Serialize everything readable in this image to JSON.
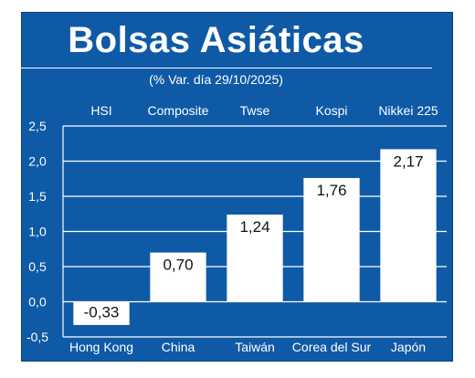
{
  "chart_data": {
    "type": "bar",
    "title": "Bolsas Asiáticas",
    "subtitle": "(% Var. día  29/10/2025)",
    "indices": [
      "HSI",
      "Composite",
      "Twse",
      "Kospi",
      "Nikkei 225"
    ],
    "categories": [
      "Hong Kong",
      "China",
      "Taiwán",
      "Corea del Sur",
      "Japón"
    ],
    "values": [
      -0.33,
      0.7,
      1.24,
      1.76,
      2.17
    ],
    "value_labels": [
      "-0,33",
      "0,70",
      "1,24",
      "1,76",
      "2,17"
    ],
    "y_ticks": [
      2.5,
      2.0,
      1.5,
      1.0,
      0.5,
      0.0,
      -0.5
    ],
    "y_tick_labels": [
      "2,5",
      "2,0",
      "1,5",
      "1,0",
      "0,5",
      "0,0",
      "-0,5"
    ],
    "ylim": [
      -0.5,
      2.5
    ],
    "grid": true,
    "colors": {
      "background": "#0f5aa6",
      "bar": "#ffffff",
      "grid": "#ffffff",
      "text": "#ffffff"
    }
  }
}
